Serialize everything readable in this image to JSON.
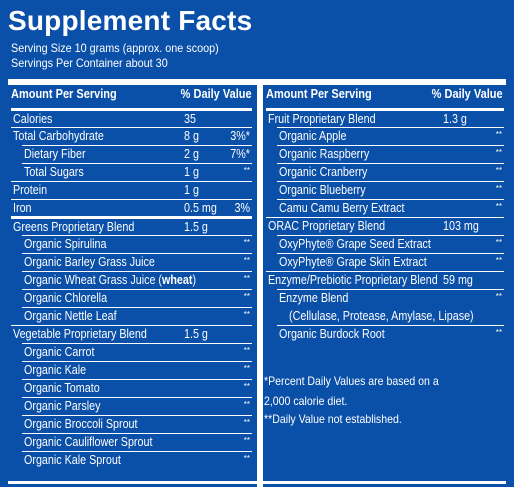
{
  "panel": {
    "title": "Supplement Facts",
    "serving_size": "Serving Size 10 grams (approx. one scoop)",
    "servings_per_container": "Servings Per Container about 30",
    "header_amount": "Amount Per Serving",
    "header_dv": "% Daily Value"
  },
  "left": [
    {
      "name": "Calories",
      "amount": "35",
      "dv": "",
      "indent": 0,
      "rule": "thick"
    },
    {
      "name": "Total Carbohydrate",
      "amount": "8 g",
      "dv": "3%*",
      "indent": 0
    },
    {
      "name": "Dietary Fiber",
      "amount": "2 g",
      "dv": "7%*",
      "indent": 1
    },
    {
      "name": "Total Sugars",
      "amount": "1 g",
      "dv": "**",
      "indent": 1
    },
    {
      "name": "Protein",
      "amount": "1 g",
      "dv": "",
      "indent": 0
    },
    {
      "name": "Iron",
      "amount": "0.5 mg",
      "dv": "3%",
      "indent": 0
    },
    {
      "name": "Greens Proprietary Blend",
      "amount": "1.5 g",
      "dv": "",
      "indent": 0,
      "rule": "thick"
    },
    {
      "name": "Organic Spirulina",
      "amount": "",
      "dv": "**",
      "indent": 1
    },
    {
      "name": "Organic Barley Grass Juice",
      "amount": "",
      "dv": "**",
      "indent": 1
    },
    {
      "name": "Organic Wheat Grass Juice (",
      "bold": "wheat",
      "after": ")",
      "amount": "",
      "dv": "**",
      "indent": 1
    },
    {
      "name": "Organic Chlorella",
      "amount": "",
      "dv": "**",
      "indent": 1
    },
    {
      "name": "Organic Nettle Leaf",
      "amount": "",
      "dv": "**",
      "indent": 1
    },
    {
      "name": "Vegetable Proprietary Blend",
      "amount": "1.5 g",
      "dv": "",
      "indent": 0
    },
    {
      "name": "Organic Carrot",
      "amount": "",
      "dv": "**",
      "indent": 1
    },
    {
      "name": "Organic Kale",
      "amount": "",
      "dv": "**",
      "indent": 1
    },
    {
      "name": "Organic Tomato",
      "amount": "",
      "dv": "**",
      "indent": 1
    },
    {
      "name": "Organic Parsley",
      "amount": "",
      "dv": "**",
      "indent": 1
    },
    {
      "name": "Organic Broccoli Sprout",
      "amount": "",
      "dv": "**",
      "indent": 1
    },
    {
      "name": "Organic Cauliflower Sprout",
      "amount": "",
      "dv": "**",
      "indent": 1
    },
    {
      "name": "Organic Kale Sprout",
      "amount": "",
      "dv": "**",
      "indent": 1
    }
  ],
  "right": [
    {
      "name": "Fruit Proprietary Blend",
      "amount": "1.3 g",
      "dv": "",
      "indent": 0,
      "rule": "thick"
    },
    {
      "name": "Organic Apple",
      "amount": "",
      "dv": "**",
      "indent": 1
    },
    {
      "name": "Organic Raspberry",
      "amount": "",
      "dv": "**",
      "indent": 1
    },
    {
      "name": "Organic Cranberry",
      "amount": "",
      "dv": "**",
      "indent": 1
    },
    {
      "name": "Organic Blueberry",
      "amount": "",
      "dv": "**",
      "indent": 1
    },
    {
      "name": "Camu Camu Berry Extract",
      "amount": "",
      "dv": "**",
      "indent": 1
    },
    {
      "name": "ORAC Proprietary Blend",
      "amount": "103 mg",
      "dv": "",
      "indent": 0
    },
    {
      "name": "OxyPhyte® Grape Seed Extract",
      "amount": "",
      "dv": "**",
      "indent": 1
    },
    {
      "name": "OxyPhyte® Grape Skin Extract",
      "amount": "",
      "dv": "**",
      "indent": 1
    },
    {
      "name": "Enzyme/Prebiotic Proprietary Blend",
      "amount": "59 mg",
      "dv": "",
      "indent": 0
    },
    {
      "name": "Enzyme Blend",
      "line2": "(Cellulase, Protease, Amylase, Lipase)",
      "amount": "",
      "dv": "**",
      "indent": 1,
      "double": true
    },
    {
      "name": "Organic Burdock Root",
      "amount": "",
      "dv": "**",
      "indent": 1
    }
  ],
  "footnotes": [
    "*Percent Daily Values are based on a",
    "2,000 calorie diet.",
    "**Daily Value not established."
  ]
}
